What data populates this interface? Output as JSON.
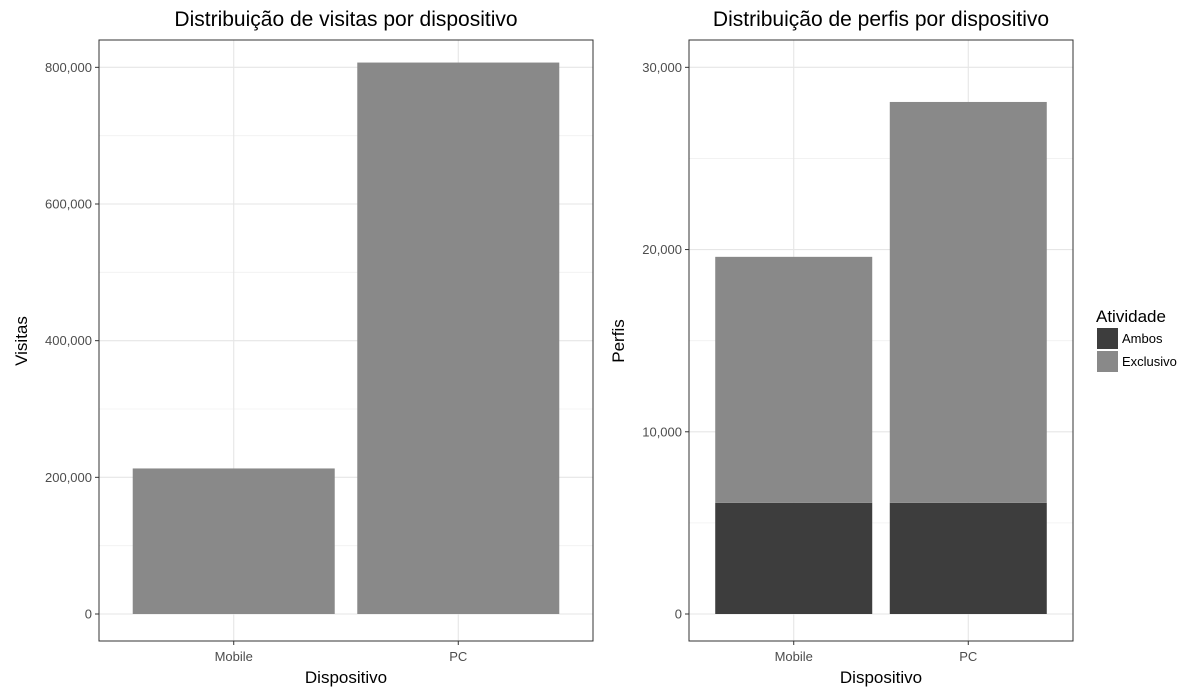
{
  "chart_data": [
    {
      "type": "bar",
      "title": "Distribuição de visitas por dispositivo",
      "xlabel": "Dispositivo",
      "ylabel": "Visitas",
      "categories": [
        "Mobile",
        "PC"
      ],
      "values": [
        213000,
        807000
      ],
      "ylim": [
        0,
        840000
      ],
      "yticks": [
        0,
        200000,
        400000,
        600000,
        800000
      ],
      "ytick_labels": [
        "0",
        "200,000",
        "400,000",
        "600,000",
        "800,000"
      ],
      "grid": true,
      "colors": {
        "bar": "#898989"
      }
    },
    {
      "type": "bar",
      "stacked": true,
      "title": "Distribuição de perfis por dispositivo",
      "xlabel": "Dispositivo",
      "ylabel": "Perfis",
      "categories": [
        "Mobile",
        "PC"
      ],
      "series": [
        {
          "name": "Ambos",
          "values": [
            6100,
            6100
          ],
          "color": "#3d3d3d"
        },
        {
          "name": "Exclusivo",
          "values": [
            13500,
            22000
          ],
          "color": "#898989"
        }
      ],
      "ylim": [
        0,
        31500
      ],
      "yticks": [
        0,
        10000,
        20000,
        30000
      ],
      "ytick_labels": [
        "0",
        "10,000",
        "20,000",
        "30,000"
      ],
      "grid": true,
      "legend": {
        "title": "Atividade",
        "position": "right"
      }
    }
  ]
}
